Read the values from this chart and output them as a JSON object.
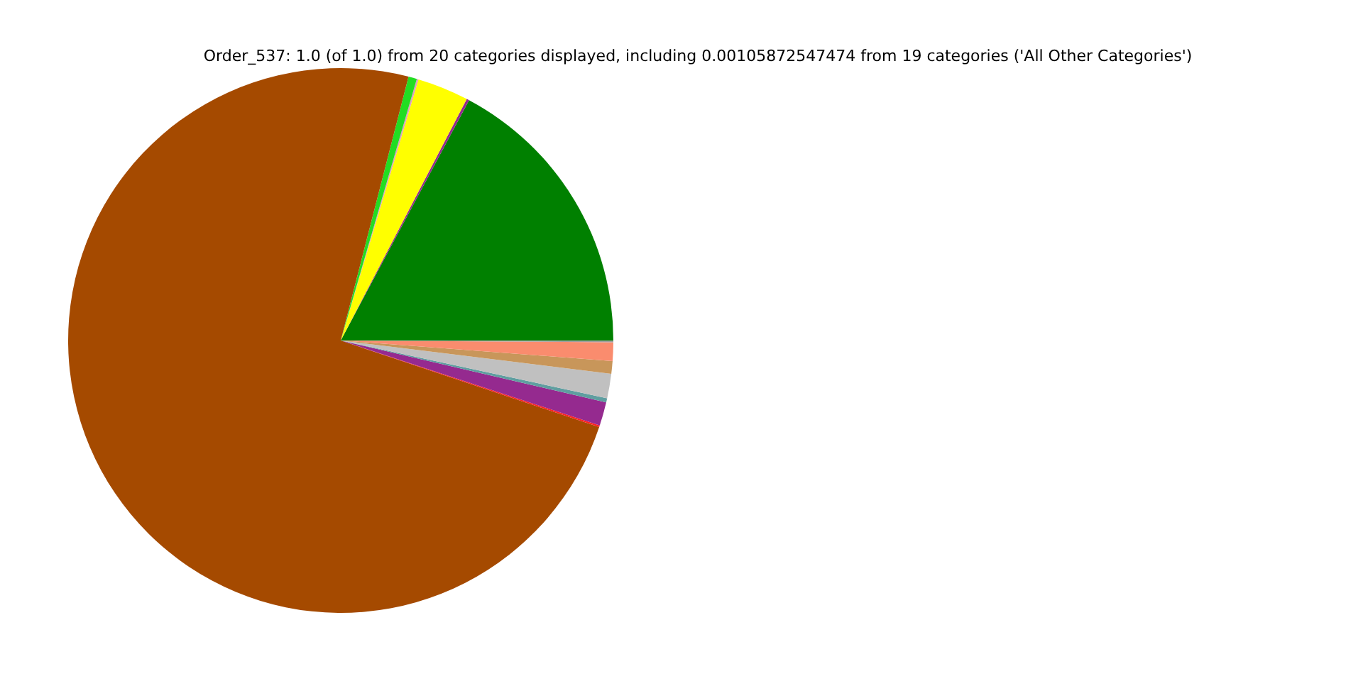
{
  "chart_data": {
    "type": "pie",
    "title": "Order_537: 1.0 (of 1.0) from 20 categories displayed, including 0.00105872547474 from 19 categories ('All Other Categories')",
    "categories": [
      null,
      null,
      null,
      null,
      null,
      null,
      null,
      null,
      null,
      null,
      null,
      null,
      null
    ],
    "values": [
      17.2,
      0.15,
      3.05,
      0.1,
      0.5,
      73.85,
      0.1,
      1.4,
      0.25,
      1.45,
      0.75,
      1.1,
      0.1
    ],
    "colors": [
      "#008000",
      "#952a8f",
      "#ffff00",
      "#e0a0c0",
      "#22dd22",
      "#a54a00",
      "#ff2020",
      "#952a8f",
      "#5f9ea0",
      "#c0c0c0",
      "#c8965a",
      "#fa8c6e",
      "#a0a0a0"
    ],
    "legend": false
  }
}
